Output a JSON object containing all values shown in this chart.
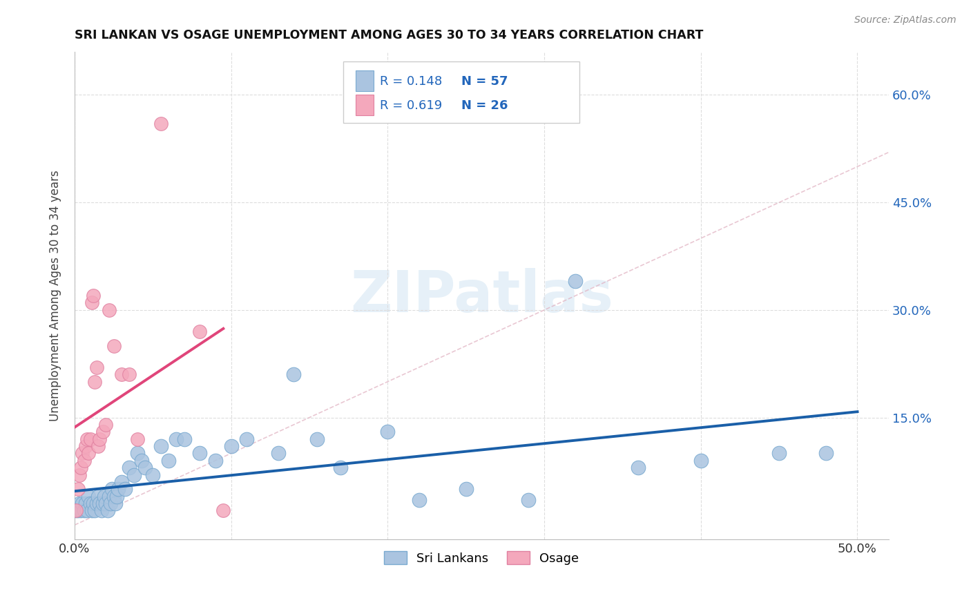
{
  "title": "SRI LANKAN VS OSAGE UNEMPLOYMENT AMONG AGES 30 TO 34 YEARS CORRELATION CHART",
  "source": "Source: ZipAtlas.com",
  "ylabel": "Unemployment Among Ages 30 to 34 years",
  "xlim": [
    0.0,
    0.52
  ],
  "ylim": [
    -0.02,
    0.66
  ],
  "xticks": [
    0.0,
    0.1,
    0.2,
    0.3,
    0.4,
    0.5
  ],
  "xticklabels": [
    "0.0%",
    "",
    "",
    "",
    "",
    "50.0%"
  ],
  "yticks_right": [
    0.15,
    0.3,
    0.45,
    0.6
  ],
  "yticklabels_right": [
    "15.0%",
    "30.0%",
    "45.0%",
    "60.0%"
  ],
  "sri_lankans_color": "#aac4e0",
  "sri_lankans_edge": "#7aaad0",
  "osage_color": "#f4a8bc",
  "osage_edge": "#e080a0",
  "sri_lankans_line_color": "#1a5fa8",
  "osage_line_color": "#e0457a",
  "legend_sri_r": "0.148",
  "legend_sri_n": "57",
  "legend_osage_r": "0.619",
  "legend_osage_n": "26",
  "watermark": "ZIPatlas",
  "sri_lankans_x": [
    0.001,
    0.002,
    0.003,
    0.004,
    0.005,
    0.006,
    0.007,
    0.008,
    0.009,
    0.01,
    0.011,
    0.012,
    0.013,
    0.014,
    0.015,
    0.016,
    0.017,
    0.018,
    0.019,
    0.02,
    0.021,
    0.022,
    0.023,
    0.024,
    0.025,
    0.026,
    0.027,
    0.028,
    0.03,
    0.032,
    0.035,
    0.038,
    0.04,
    0.043,
    0.045,
    0.05,
    0.055,
    0.06,
    0.065,
    0.07,
    0.08,
    0.09,
    0.1,
    0.11,
    0.13,
    0.14,
    0.155,
    0.17,
    0.2,
    0.22,
    0.25,
    0.29,
    0.32,
    0.36,
    0.4,
    0.45,
    0.48
  ],
  "sri_lankans_y": [
    0.02,
    0.02,
    0.03,
    0.02,
    0.03,
    0.02,
    0.03,
    0.02,
    0.04,
    0.03,
    0.02,
    0.03,
    0.02,
    0.03,
    0.04,
    0.03,
    0.02,
    0.03,
    0.04,
    0.03,
    0.02,
    0.04,
    0.03,
    0.05,
    0.04,
    0.03,
    0.04,
    0.05,
    0.06,
    0.05,
    0.08,
    0.07,
    0.1,
    0.09,
    0.08,
    0.07,
    0.11,
    0.09,
    0.12,
    0.12,
    0.1,
    0.09,
    0.11,
    0.12,
    0.1,
    0.21,
    0.12,
    0.08,
    0.13,
    0.035,
    0.05,
    0.035,
    0.34,
    0.08,
    0.09,
    0.1,
    0.1
  ],
  "osage_x": [
    0.001,
    0.002,
    0.003,
    0.004,
    0.005,
    0.006,
    0.007,
    0.008,
    0.009,
    0.01,
    0.011,
    0.012,
    0.013,
    0.014,
    0.015,
    0.016,
    0.018,
    0.02,
    0.022,
    0.025,
    0.03,
    0.035,
    0.04,
    0.055,
    0.08,
    0.095
  ],
  "osage_y": [
    0.02,
    0.05,
    0.07,
    0.08,
    0.1,
    0.09,
    0.11,
    0.12,
    0.1,
    0.12,
    0.31,
    0.32,
    0.2,
    0.22,
    0.11,
    0.12,
    0.13,
    0.14,
    0.3,
    0.25,
    0.21,
    0.21,
    0.12,
    0.56,
    0.27,
    0.02
  ]
}
